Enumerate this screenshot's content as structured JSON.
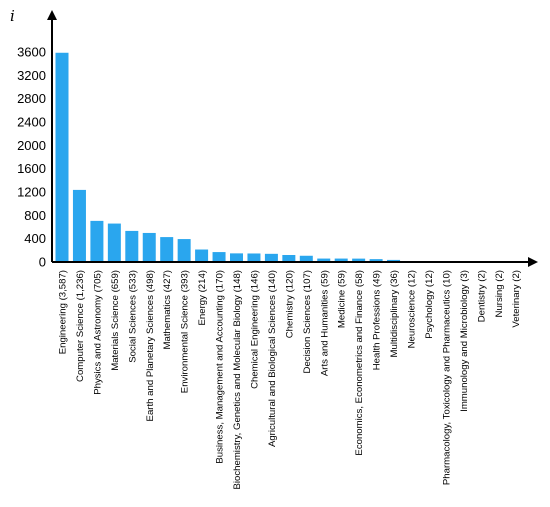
{
  "chart_data": {
    "type": "bar",
    "title": "",
    "xlabel": "",
    "ylabel": "i",
    "ylim": [
      0,
      4000
    ],
    "yticks": [
      0,
      400,
      800,
      1200,
      1600,
      2000,
      2400,
      2800,
      3200,
      3600
    ],
    "grid": false,
    "bar_color": "#2aa6ee",
    "categories": [
      "Engineering (3,587)",
      "Computer Science (1,236)",
      "Physics and Astronomy (705)",
      "Materials Science (659)",
      "Social Sciences (533)",
      "Earth and Planetary Sciences (498)",
      "Mathematics (427)",
      "Environmental Science (393)",
      "Energy (214)",
      "Business, Management and Accounting (170)",
      "Biochemistry, Genetics and Molecular Biology (148)",
      "Chemical Engineering (146)",
      "Agricultural and Biological Sciences (140)",
      "Chemistry (120)",
      "Decision Sciences (107)",
      "Arts and Humanities (59)",
      "Medicine (59)",
      "Economics, Econometrics and Finance (58)",
      "Health Professions (49)",
      "Multidisciplinary (36)",
      "Neuroscience (12)",
      "Psychology (12)",
      "Pharmacology, Toxicology and Pharmaceutics (10)",
      "Immunology and Microbiology (3)",
      "Dentistry (2)",
      "Nursing (2)",
      "Veterinary (2)"
    ],
    "values": [
      3587,
      1236,
      705,
      659,
      533,
      498,
      427,
      393,
      214,
      170,
      148,
      146,
      140,
      120,
      107,
      59,
      59,
      58,
      49,
      36,
      12,
      12,
      10,
      3,
      2,
      2,
      2
    ]
  }
}
